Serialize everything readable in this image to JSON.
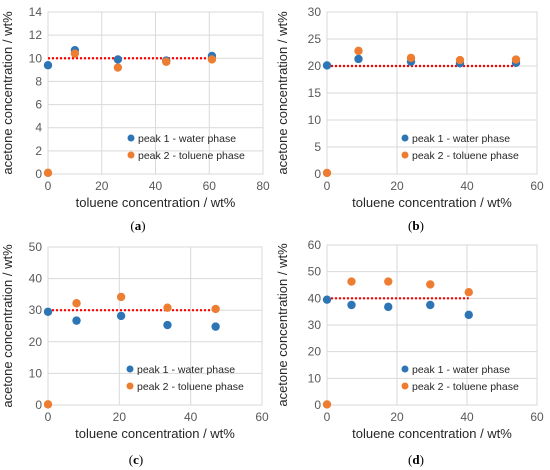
{
  "chart_data": [
    {
      "type": "scatter",
      "panel_label": "a",
      "title": "",
      "xlabel": "toluene concentration / wt%",
      "ylabel": "acetone concentration / wt%",
      "xlim": [
        0,
        80
      ],
      "xticks": [
        0,
        20,
        40,
        60,
        80
      ],
      "ylim": [
        0,
        14
      ],
      "yticks": [
        0,
        2,
        4,
        6,
        8,
        10,
        12,
        14
      ],
      "grid": true,
      "legend": "bottom-right",
      "series": [
        {
          "name": "peak 1 - water phase",
          "color": "#2e75b6",
          "points": [
            [
              0,
              9.4
            ],
            [
              10,
              10.7
            ],
            [
              26,
              9.9
            ],
            [
              44,
              9.8
            ],
            [
              61,
              10.2
            ]
          ]
        },
        {
          "name": "peak 2 - toluene phase",
          "color": "#ed7d31",
          "points": [
            [
              0,
              0.1
            ],
            [
              10,
              10.4
            ],
            [
              26,
              9.2
            ],
            [
              44,
              9.7
            ],
            [
              61,
              9.9
            ]
          ]
        }
      ],
      "reference_line": {
        "y": 10,
        "x_range": [
          0,
          61
        ],
        "color": "#ff0000",
        "style": "dotted"
      }
    },
    {
      "type": "scatter",
      "panel_label": "b",
      "title": "",
      "xlabel": "toluene concentration / wt%",
      "ylabel": "acetone concentration / wt%",
      "xlim": [
        0,
        60
      ],
      "xticks": [
        0,
        20,
        40,
        60
      ],
      "ylim": [
        0,
        30
      ],
      "yticks": [
        0,
        5,
        10,
        15,
        20,
        25,
        30
      ],
      "grid": true,
      "legend": "bottom-right",
      "series": [
        {
          "name": "peak 1 - water phase",
          "color": "#2e75b6",
          "points": [
            [
              0,
              20.1
            ],
            [
              9,
              21.3
            ],
            [
              24,
              20.8
            ],
            [
              38,
              20.5
            ],
            [
              54,
              20.6
            ]
          ]
        },
        {
          "name": "peak 2 - toluene phase",
          "color": "#ed7d31",
          "points": [
            [
              0,
              0.2
            ],
            [
              9,
              22.8
            ],
            [
              24,
              21.5
            ],
            [
              38,
              21.1
            ],
            [
              54,
              21.2
            ]
          ]
        }
      ],
      "reference_line": {
        "y": 20,
        "x_range": [
          0,
          54
        ],
        "color": "#ff0000",
        "style": "dotted"
      }
    },
    {
      "type": "scatter",
      "panel_label": "c",
      "title": "",
      "xlabel": "toluene concentration / wt%",
      "ylabel": "acetone concentration / wt%",
      "xlim": [
        0,
        60
      ],
      "xticks": [
        0,
        20,
        40,
        60
      ],
      "ylim": [
        0,
        50
      ],
      "yticks": [
        0,
        10,
        20,
        30,
        40,
        50
      ],
      "grid": true,
      "legend": "bottom-right",
      "series": [
        {
          "name": "peak 1 - water phase",
          "color": "#2e75b6",
          "points": [
            [
              0,
              29.5
            ],
            [
              8,
              26.7
            ],
            [
              20.5,
              28.2
            ],
            [
              33.5,
              25.3
            ],
            [
              47,
              24.8
            ]
          ]
        },
        {
          "name": "peak 2 - toluene phase",
          "color": "#ed7d31",
          "points": [
            [
              0,
              0.2
            ],
            [
              8,
              32.2
            ],
            [
              20.5,
              34.2
            ],
            [
              33.5,
              30.8
            ],
            [
              47,
              30.4
            ]
          ]
        }
      ],
      "reference_line": {
        "y": 30,
        "x_range": [
          0,
          47
        ],
        "color": "#ff0000",
        "style": "dotted"
      }
    },
    {
      "type": "scatter",
      "panel_label": "d",
      "title": "",
      "xlabel": "toluene concentration / wt%",
      "ylabel": "acetone concentration / wt%",
      "xlim": [
        0,
        60
      ],
      "xticks": [
        0,
        20,
        40,
        60
      ],
      "ylim": [
        0,
        60
      ],
      "yticks": [
        0,
        10,
        20,
        30,
        40,
        50,
        60
      ],
      "grid": true,
      "legend": "bottom-right",
      "series": [
        {
          "name": "peak 1 - water phase",
          "color": "#2e75b6",
          "points": [
            [
              0,
              39.5
            ],
            [
              7,
              37.5
            ],
            [
              17.5,
              36.8
            ],
            [
              29.5,
              37.5
            ],
            [
              40.5,
              33.8
            ]
          ]
        },
        {
          "name": "peak 2 - toluene phase",
          "color": "#ed7d31",
          "points": [
            [
              0,
              0.2
            ],
            [
              7,
              46.3
            ],
            [
              17.5,
              46.3
            ],
            [
              29.5,
              45.2
            ],
            [
              40.5,
              42.3
            ]
          ]
        }
      ],
      "reference_line": {
        "y": 40,
        "x_range": [
          0,
          40.5
        ],
        "color": "#ff0000",
        "style": "dotted"
      }
    }
  ]
}
